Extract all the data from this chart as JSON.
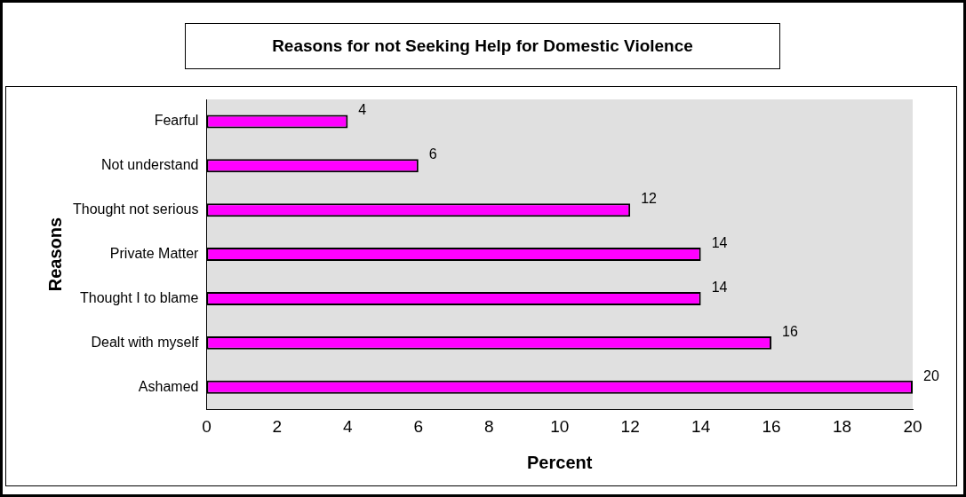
{
  "chart_data": {
    "type": "bar",
    "orientation": "horizontal",
    "title": "Reasons for not Seeking Help for Domestic Violence",
    "xlabel": "Percent",
    "ylabel": "Reasons",
    "categories": [
      "Fearful",
      "Not understand",
      "Thought not serious",
      "Private Matter",
      "Thought I to blame",
      "Dealt with myself",
      "Ashamed"
    ],
    "values": [
      4,
      6,
      12,
      14,
      14,
      16,
      20
    ],
    "color": "#ff00ff",
    "xlim": [
      0,
      20
    ],
    "xticks": [
      0,
      2,
      4,
      6,
      8,
      10,
      12,
      14,
      16,
      18,
      20
    ],
    "data_labels": true
  }
}
